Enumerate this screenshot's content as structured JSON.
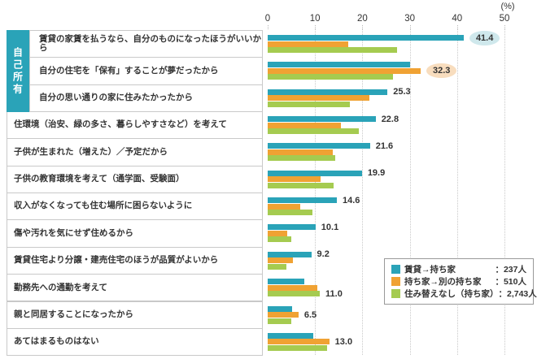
{
  "chart_data": {
    "type": "bar",
    "orientation": "horizontal",
    "unit_label": "(%)",
    "xlim": [
      0,
      50
    ],
    "x_ticks": [
      0,
      10,
      20,
      30,
      40,
      50
    ],
    "grid": "dotted-vertical",
    "legend_position": "bottom-right",
    "group_label": "自己所有",
    "group_label_rows": [
      0,
      1,
      2
    ],
    "categories": [
      "賃貸の家賃を払うなら、自分のものになったほうがいいから",
      "自分の住宅を「保有」することが夢だったから",
      "自分の思い通りの家に住みたかったから",
      "住環境（治安、緑の多さ、暮らしやすさなど）を考えて",
      "子供が生まれた（増えた）／予定だから",
      "子供の教育環境を考えて（通学面、受験面）",
      "収入がなくなっても住む場所に困らないように",
      "傷や汚れを気にせず住めるから",
      "賃貸住宅より分譲・建売住宅のほうが品質がよいから",
      "勤務先への通勤を考えて",
      "親と同居することになったから",
      "あてはまるものはない"
    ],
    "series": [
      {
        "name": "賃貸→持ち家",
        "count_label": "：237人",
        "color": "#2aa3b8",
        "values": [
          41.4,
          30.0,
          25.3,
          22.8,
          21.6,
          19.9,
          14.6,
          10.1,
          9.2,
          7.8,
          5.1,
          9.6
        ]
      },
      {
        "name": "持ち家→別の持ち家",
        "count_label": "：510人",
        "color": "#f0a233",
        "values": [
          17.0,
          32.3,
          21.4,
          15.4,
          13.8,
          11.2,
          6.9,
          4.2,
          5.3,
          10.5,
          6.5,
          13.0
        ]
      },
      {
        "name": "住み替えなし（持ち家）",
        "count_label": "：2,743人",
        "color": "#a5cb50",
        "values": [
          27.4,
          26.4,
          17.3,
          19.2,
          14.3,
          13.9,
          9.4,
          5.0,
          3.9,
          11.0,
          5.0,
          12.6
        ]
      }
    ],
    "callouts": [
      {
        "row": 0,
        "series": 0,
        "text": "41.4",
        "bubble": "#cfe8ec"
      },
      {
        "row": 1,
        "series": 1,
        "text": "32.3",
        "bubble": "#f8ddbe"
      },
      {
        "row": 2,
        "series": 0,
        "text": "25.3",
        "bubble": null
      },
      {
        "row": 3,
        "series": 0,
        "text": "22.8",
        "bubble": null
      },
      {
        "row": 4,
        "series": 0,
        "text": "21.6",
        "bubble": null
      },
      {
        "row": 5,
        "series": 0,
        "text": "19.9",
        "bubble": null
      },
      {
        "row": 6,
        "series": 0,
        "text": "14.6",
        "bubble": null
      },
      {
        "row": 7,
        "series": 0,
        "text": "10.1",
        "bubble": null
      },
      {
        "row": 8,
        "series": 0,
        "text": "9.2",
        "bubble": null
      },
      {
        "row": 9,
        "series": 2,
        "text": "11.0",
        "bubble": null
      },
      {
        "row": 10,
        "series": 1,
        "text": "6.5",
        "bubble": null
      },
      {
        "row": 11,
        "series": 1,
        "text": "13.0",
        "bubble": null
      }
    ]
  }
}
